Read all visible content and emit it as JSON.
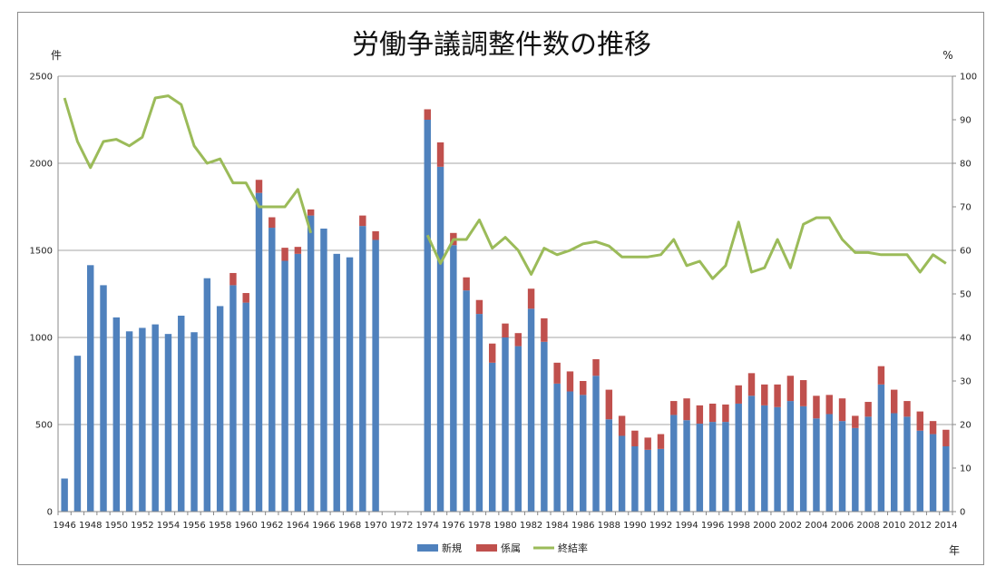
{
  "chart_data": {
    "type": "bar",
    "stacked": true,
    "title": "労働争議調整件数の推移",
    "left_unit": "件",
    "right_unit": "%",
    "x_unit": "年",
    "ylim": [
      0,
      2500
    ],
    "y_ticks": [
      0,
      500,
      1000,
      1500,
      2000,
      2500
    ],
    "y2lim": [
      0,
      100
    ],
    "y2_ticks": [
      0,
      10,
      20,
      30,
      40,
      50,
      60,
      70,
      80,
      90,
      100
    ],
    "grid": true,
    "legend_position": "bottom",
    "x_tick_labels": [
      "1946",
      "1948",
      "1950",
      "1952",
      "1954",
      "1956",
      "1958",
      "1960",
      "1962",
      "1964",
      "1966",
      "1968",
      "1970",
      "1972",
      "1974",
      "1976",
      "1978",
      "1980",
      "1982",
      "1984",
      "1986",
      "1988",
      "1990",
      "1992",
      "1994",
      "1996",
      "1998",
      "2000",
      "2002",
      "2004",
      "2006",
      "2008",
      "2010",
      "2012",
      "2014"
    ],
    "years": [
      1946,
      1947,
      1948,
      1949,
      1950,
      1951,
      1952,
      1953,
      1954,
      1955,
      1956,
      1957,
      1958,
      1959,
      1960,
      1961,
      1962,
      1963,
      1964,
      1965,
      1966,
      1967,
      1968,
      1969,
      1970,
      1971,
      1972,
      1973,
      1974,
      1975,
      1976,
      1977,
      1978,
      1979,
      1980,
      1981,
      1982,
      1983,
      1984,
      1985,
      1986,
      1987,
      1988,
      1989,
      1990,
      1991,
      1992,
      1993,
      1994,
      1995,
      1996,
      1997,
      1998,
      1999,
      2000,
      2001,
      2002,
      2003,
      2004,
      2005,
      2006,
      2007,
      2008,
      2009,
      2010,
      2011,
      2012,
      2013,
      2014
    ],
    "series": [
      {
        "name": "新規",
        "kind": "bar",
        "color": "#4f81bd",
        "values": [
          190,
          895,
          1415,
          1300,
          1115,
          1035,
          1055,
          1075,
          1020,
          1125,
          1030,
          1340,
          1180,
          1300,
          1200,
          1830,
          1630,
          1440,
          1480,
          1700,
          1625,
          1480,
          1460,
          1640,
          1560,
          null,
          null,
          null,
          2250,
          1980,
          1530,
          1270,
          1135,
          855,
          1000,
          950,
          1165,
          975,
          735,
          690,
          670,
          780,
          530,
          435,
          375,
          355,
          360,
          555,
          525,
          505,
          515,
          515,
          620,
          665,
          610,
          600,
          635,
          605,
          535,
          560,
          520,
          480,
          545,
          730,
          565,
          545,
          465,
          445,
          375
        ]
      },
      {
        "name": "係属",
        "kind": "bar",
        "color": "#c0504d",
        "values": [
          0,
          0,
          0,
          0,
          0,
          0,
          0,
          0,
          0,
          0,
          0,
          0,
          0,
          70,
          55,
          75,
          60,
          75,
          40,
          35,
          0,
          0,
          0,
          60,
          50,
          null,
          null,
          null,
          60,
          140,
          70,
          75,
          80,
          110,
          80,
          75,
          115,
          135,
          120,
          115,
          80,
          95,
          170,
          115,
          90,
          70,
          85,
          80,
          125,
          105,
          105,
          100,
          105,
          130,
          120,
          130,
          145,
          150,
          130,
          110,
          130,
          70,
          85,
          105,
          135,
          90,
          110,
          75,
          95
        ]
      },
      {
        "name": "終結率",
        "kind": "line",
        "axis": "right",
        "color": "#9bbb59",
        "values": [
          95,
          85,
          79,
          85,
          85.5,
          84,
          86,
          95,
          95.5,
          93.5,
          84,
          80,
          81,
          75.5,
          75.5,
          70,
          70,
          70,
          74,
          64,
          null,
          null,
          null,
          null,
          null,
          null,
          null,
          null,
          63.5,
          57,
          62.5,
          62.5,
          67,
          60.5,
          63,
          60,
          54.5,
          60.5,
          59,
          60,
          61.5,
          62,
          61,
          58.5,
          58.5,
          58.5,
          59,
          62.5,
          56.5,
          57.5,
          53.5,
          56.5,
          66.5,
          55,
          56,
          62.5,
          56,
          66,
          67.5,
          67.5,
          62.5,
          59.5,
          59.5,
          59,
          59,
          59,
          55,
          59,
          57
        ]
      }
    ]
  }
}
